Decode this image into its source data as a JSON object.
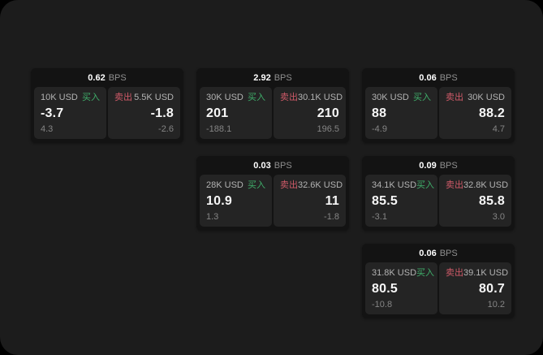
{
  "screen": {
    "outer_bg": "#000000",
    "panel_bg": "#1c1c1c"
  },
  "colors": {
    "card_bg": "#131313",
    "tile_bg": "#242424",
    "buy_green": "#3fae6a",
    "sell_red": "#cf5a68",
    "value_text": "#f7f7f7",
    "label_text": "#b3b3b3",
    "muted_text": "#858585",
    "bps_value_text": "#ffffff",
    "bps_unit_text": "#8f8f8f"
  },
  "labels": {
    "buy": "买入",
    "sell": "卖出",
    "bps_unit": "BPS"
  },
  "cards": [
    {
      "grid": {
        "row": 1,
        "col": 1
      },
      "bps": "0.62",
      "buy": {
        "amount": "10K USD",
        "value": "-3.7",
        "delta": "4.3"
      },
      "sell": {
        "amount": "5.5K USD",
        "value": "-1.8",
        "delta": "-2.6"
      }
    },
    {
      "grid": {
        "row": 1,
        "col": 2
      },
      "bps": "2.92",
      "buy": {
        "amount": "30K USD",
        "value": "201",
        "delta": "-188.1"
      },
      "sell": {
        "amount": "30.1K USD",
        "value": "210",
        "delta": "196.5"
      }
    },
    {
      "grid": {
        "row": 1,
        "col": 3
      },
      "bps": "0.06",
      "buy": {
        "amount": "30K USD",
        "value": "88",
        "delta": "-4.9"
      },
      "sell": {
        "amount": "30K USD",
        "value": "88.2",
        "delta": "4.7"
      }
    },
    {
      "grid": {
        "row": 2,
        "col": 2
      },
      "bps": "0.03",
      "buy": {
        "amount": "28K USD",
        "value": "10.9",
        "delta": "1.3"
      },
      "sell": {
        "amount": "32.6K USD",
        "value": "11",
        "delta": "-1.8"
      }
    },
    {
      "grid": {
        "row": 2,
        "col": 3
      },
      "bps": "0.09",
      "buy": {
        "amount": "34.1K USD",
        "value": "85.5",
        "delta": "-3.1"
      },
      "sell": {
        "amount": "32.8K USD",
        "value": "85.8",
        "delta": "3.0"
      }
    },
    {
      "grid": {
        "row": 3,
        "col": 3
      },
      "bps": "0.06",
      "buy": {
        "amount": "31.8K USD",
        "value": "80.5",
        "delta": "-10.8"
      },
      "sell": {
        "amount": "39.1K USD",
        "value": "80.7",
        "delta": "10.2"
      }
    }
  ]
}
